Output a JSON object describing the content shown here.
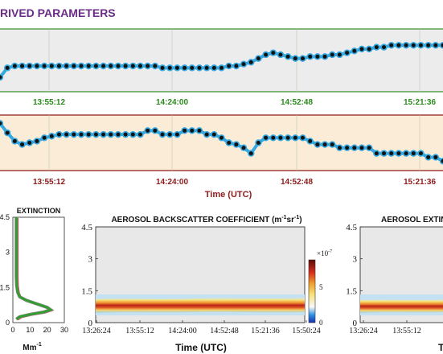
{
  "header": {
    "title": "RIVED PARAMETERS"
  },
  "chart_data": [
    {
      "type": "line",
      "x_ticks": [
        "13:55:12",
        "14:24:00",
        "14:52:48",
        "15:21:36"
      ],
      "colors": {
        "line": "#35a8e0",
        "marker": "#111111",
        "tick": "#2a8a1c",
        "background": "#ececec"
      },
      "series": [
        {
          "values": [
            0.23,
            0.38,
            0.41,
            0.41,
            0.41,
            0.41,
            0.41,
            0.41,
            0.41,
            0.41,
            0.41,
            0.41,
            0.41,
            0.41,
            0.41,
            0.41,
            0.41,
            0.41,
            0.41,
            0.41,
            0.41,
            0.41,
            0.38,
            0.38,
            0.38,
            0.38,
            0.38,
            0.38,
            0.38,
            0.38,
            0.38,
            0.41,
            0.41,
            0.44,
            0.47,
            0.53,
            0.59,
            0.62,
            0.59,
            0.56,
            0.53,
            0.53,
            0.56,
            0.56,
            0.56,
            0.59,
            0.59,
            0.62,
            0.65,
            0.68,
            0.68,
            0.71,
            0.71,
            0.74,
            0.74,
            0.74,
            0.74,
            0.74,
            0.74,
            0.74,
            0.74
          ]
        }
      ]
    },
    {
      "type": "line",
      "x_ticks": [
        "13:55:12",
        "14:24:00",
        "14:52:48",
        "15:21:36"
      ],
      "xlabel": "Time (UTC)",
      "colors": {
        "line": "#35a8e0",
        "marker": "#111111",
        "tick": "#8e1a1a",
        "background": "#fbecd8"
      },
      "series": [
        {
          "values": [
            0.85,
            0.68,
            0.53,
            0.47,
            0.5,
            0.53,
            0.59,
            0.62,
            0.65,
            0.65,
            0.65,
            0.65,
            0.65,
            0.65,
            0.65,
            0.65,
            0.65,
            0.65,
            0.65,
            0.65,
            0.72,
            0.72,
            0.65,
            0.65,
            0.65,
            0.72,
            0.72,
            0.72,
            0.65,
            0.65,
            0.59,
            0.5,
            0.47,
            0.41,
            0.31,
            0.5,
            0.59,
            0.59,
            0.59,
            0.59,
            0.59,
            0.59,
            0.53,
            0.47,
            0.47,
            0.47,
            0.41,
            0.41,
            0.41,
            0.41,
            0.41,
            0.31,
            0.31,
            0.31,
            0.31,
            0.31,
            0.31,
            0.31,
            0.24,
            0.24,
            0.17
          ]
        }
      ]
    },
    {
      "type": "line",
      "title": "EXTINCTION",
      "xlabel": "Mm",
      "xlabel_sup": "-1",
      "ylim": [
        0,
        4.5
      ],
      "xlim": [
        0,
        30
      ],
      "y_ticks": [
        "0",
        "1.5",
        "3",
        "4.5"
      ],
      "x_ticks": [
        "0",
        "10",
        "20",
        "30"
      ],
      "colors": {
        "green": "#2ea02c",
        "red": "#e03a3a",
        "gray": "#808080"
      },
      "series": [
        {
          "x": [
            2,
            2,
            2.2,
            2.8,
            4,
            8,
            14,
            20,
            22,
            18,
            10,
            4,
            2
          ],
          "y": [
            4.5,
            2.0,
            1.6,
            1.3,
            1.1,
            0.95,
            0.8,
            0.65,
            0.55,
            0.45,
            0.35,
            0.25,
            0.15
          ]
        }
      ]
    },
    {
      "type": "heatmap",
      "title": "AEROSOL BACKSCATTER COEFFICIENT (m",
      "title_sup_1": "-1",
      "title_mid": "sr",
      "title_sup_2": "-1",
      "title_end": ")",
      "xlabel": "Time (UTC)",
      "ylim": [
        0,
        4.5
      ],
      "y_ticks": [
        "0",
        "1.5",
        "3",
        "4.5"
      ],
      "x_ticks": [
        "13:26:24",
        "13:55:12",
        "14:24:00",
        "14:52:48",
        "15:21:36",
        "15:50:24"
      ],
      "colorbar": {
        "exponent": "×10",
        "exponent_sup": "-7",
        "ticks": [
          "0",
          "5"
        ]
      }
    },
    {
      "type": "heatmap",
      "title": "AEROSOL EXTIN",
      "xlabel": "T",
      "y_ticks": [
        "0",
        "1.5",
        "3",
        "4.5"
      ],
      "x_ticks": [
        "13:26:24",
        "13:55:12"
      ]
    }
  ]
}
